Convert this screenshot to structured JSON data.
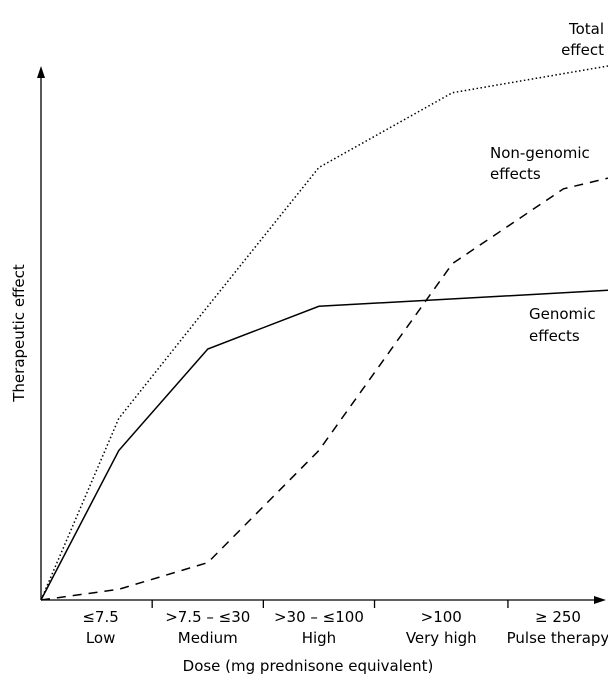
{
  "chart_data": {
    "type": "line",
    "title": "",
    "xlabel": "Dose (mg prednisone equivalent)",
    "ylabel": "Therapeutic effect",
    "xlim": [
      0,
      5.1
    ],
    "ylim": [
      0,
      100
    ],
    "grid": false,
    "tick_positions": [
      1,
      2,
      3,
      4.2
    ],
    "categories": [
      {
        "range": "≤7.5",
        "name": "Low"
      },
      {
        "range": ">7.5 – ≤30",
        "name": "Medium"
      },
      {
        "range": ">30 – ≤100",
        "name": "High"
      },
      {
        "range": ">100",
        "name": "Very high"
      },
      {
        "range": "≥ 250",
        "name": "Pulse therapy"
      }
    ],
    "series": [
      {
        "name": "Total effect",
        "dash": "dotted",
        "points": [
          [
            0,
            0
          ],
          [
            0.7,
            34
          ],
          [
            1.5,
            55
          ],
          [
            2.5,
            81
          ],
          [
            3.7,
            95
          ],
          [
            5.1,
            100
          ]
        ]
      },
      {
        "name": "Non-genomic effects",
        "dash": "dashed",
        "points": [
          [
            0,
            0
          ],
          [
            0.7,
            2
          ],
          [
            1.5,
            7
          ],
          [
            2.5,
            28
          ],
          [
            3.7,
            63
          ],
          [
            4.7,
            77
          ],
          [
            5.1,
            79
          ]
        ]
      },
      {
        "name": "Genomic effects",
        "dash": "solid",
        "points": [
          [
            0,
            0
          ],
          [
            0.7,
            28
          ],
          [
            1.5,
            47
          ],
          [
            2.5,
            55
          ],
          [
            5.1,
            58
          ]
        ]
      }
    ],
    "series_label_lines": [
      [
        "Total",
        "effect"
      ],
      [
        "Non-genomic",
        "effects"
      ],
      [
        "Genomic",
        "effects"
      ]
    ]
  }
}
